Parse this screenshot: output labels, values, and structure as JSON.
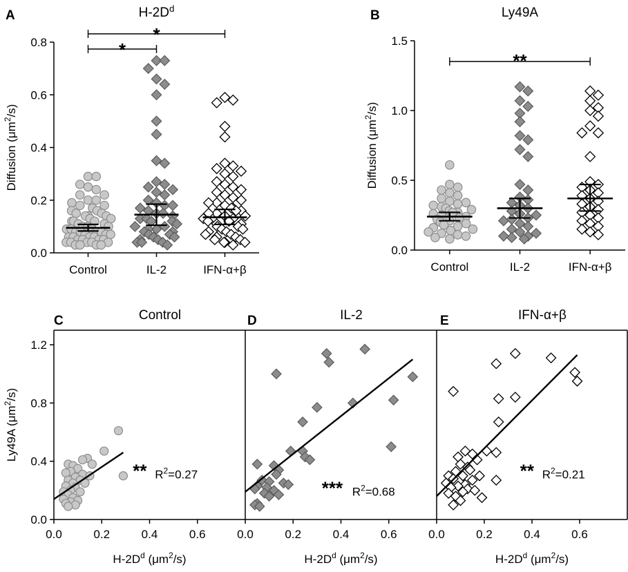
{
  "colors": {
    "control_fill": "#c8c8c8",
    "control_stroke": "#8c8c8c",
    "il2_fill": "#8c8c8c",
    "il2_stroke": "#5a5a5a",
    "ifn_fill": "#ffffff",
    "ifn_stroke": "#000000"
  },
  "chart_data": [
    {
      "panel": "A",
      "type": "scatter",
      "title": "H-2D",
      "title_sup": "d",
      "ylabel": "Diffusion (μm",
      "ylabel_sup": "2",
      "ylabel_end": "/s)",
      "ylim": [
        0,
        0.8
      ],
      "yticks": [
        "0.0",
        "0.2",
        "0.4",
        "0.6",
        "0.8"
      ],
      "categories": [
        "Control",
        "IL-2",
        "IFN-α+β"
      ],
      "series": [
        {
          "name": "Control",
          "marker": "circle",
          "mean": 0.095,
          "ci": [
            0.083,
            0.108
          ],
          "values": [
            0.29,
            0.29,
            0.26,
            0.25,
            0.24,
            0.22,
            0.22,
            0.2,
            0.2,
            0.19,
            0.18,
            0.18,
            0.17,
            0.16,
            0.16,
            0.15,
            0.15,
            0.14,
            0.14,
            0.14,
            0.13,
            0.13,
            0.12,
            0.12,
            0.12,
            0.11,
            0.11,
            0.1,
            0.1,
            0.1,
            0.1,
            0.09,
            0.09,
            0.09,
            0.08,
            0.08,
            0.08,
            0.08,
            0.07,
            0.07,
            0.07,
            0.06,
            0.06,
            0.06,
            0.06,
            0.05,
            0.05,
            0.05,
            0.05,
            0.04,
            0.04,
            0.04,
            0.04,
            0.04,
            0.03,
            0.03,
            0.03,
            0.03
          ]
        },
        {
          "name": "IL-2",
          "marker": "diamond",
          "mean": 0.145,
          "ci": [
            0.105,
            0.185
          ],
          "values": [
            0.73,
            0.73,
            0.7,
            0.66,
            0.64,
            0.6,
            0.5,
            0.45,
            0.35,
            0.34,
            0.27,
            0.26,
            0.25,
            0.24,
            0.23,
            0.22,
            0.2,
            0.19,
            0.18,
            0.18,
            0.17,
            0.16,
            0.15,
            0.15,
            0.14,
            0.13,
            0.13,
            0.12,
            0.12,
            0.11,
            0.1,
            0.1,
            0.09,
            0.09,
            0.08,
            0.08,
            0.07,
            0.07,
            0.06,
            0.06,
            0.05,
            0.05,
            0.04,
            0.04,
            0.04,
            0.03
          ]
        },
        {
          "name": "IFN-α+β",
          "marker": "diamond-open",
          "mean": 0.135,
          "ci": [
            0.108,
            0.165
          ],
          "values": [
            0.59,
            0.58,
            0.57,
            0.48,
            0.44,
            0.34,
            0.33,
            0.32,
            0.31,
            0.3,
            0.29,
            0.27,
            0.26,
            0.25,
            0.24,
            0.23,
            0.22,
            0.21,
            0.2,
            0.19,
            0.19,
            0.18,
            0.17,
            0.17,
            0.16,
            0.16,
            0.15,
            0.15,
            0.14,
            0.14,
            0.13,
            0.13,
            0.12,
            0.12,
            0.11,
            0.11,
            0.1,
            0.1,
            0.09,
            0.09,
            0.08,
            0.08,
            0.07,
            0.07,
            0.06,
            0.06,
            0.05,
            0.05,
            0.04,
            0.04,
            0.04,
            0.03
          ]
        }
      ],
      "significance": [
        {
          "from": 0,
          "to": 1,
          "label": "*"
        },
        {
          "from": 0,
          "to": 2,
          "label": "*"
        }
      ]
    },
    {
      "panel": "B",
      "type": "scatter",
      "title": "Ly49A",
      "ylabel": "Diffusion (μm",
      "ylabel_sup": "2",
      "ylabel_end": "/s)",
      "ylim": [
        0,
        1.5
      ],
      "yticks": [
        "0.0",
        "0.5",
        "1.0",
        "1.5"
      ],
      "categories": [
        "Control",
        "IL-2",
        "IFN-α+β"
      ],
      "series": [
        {
          "name": "Control",
          "marker": "circle",
          "mean": 0.24,
          "ci": [
            0.21,
            0.27
          ],
          "values": [
            0.61,
            0.47,
            0.45,
            0.43,
            0.41,
            0.39,
            0.37,
            0.35,
            0.34,
            0.33,
            0.32,
            0.31,
            0.3,
            0.29,
            0.28,
            0.27,
            0.27,
            0.26,
            0.25,
            0.24,
            0.23,
            0.22,
            0.21,
            0.2,
            0.19,
            0.18,
            0.17,
            0.16,
            0.15,
            0.14,
            0.13,
            0.12,
            0.11,
            0.1,
            0.09,
            0.08
          ]
        },
        {
          "name": "IL-2",
          "marker": "diamond",
          "mean": 0.3,
          "ci": [
            0.23,
            0.37
          ],
          "values": [
            1.17,
            1.14,
            1.07,
            1.03,
            0.98,
            0.92,
            0.82,
            0.79,
            0.72,
            0.67,
            0.47,
            0.43,
            0.38,
            0.36,
            0.34,
            0.32,
            0.3,
            0.28,
            0.26,
            0.25,
            0.23,
            0.22,
            0.21,
            0.19,
            0.17,
            0.15,
            0.13,
            0.12,
            0.1,
            0.1,
            0.09,
            0.08
          ]
        },
        {
          "name": "IFN-α+β",
          "marker": "diamond-open",
          "mean": 0.37,
          "ci": [
            0.28,
            0.47
          ],
          "values": [
            1.14,
            1.11,
            1.07,
            1.02,
            1.0,
            0.96,
            0.89,
            0.84,
            0.84,
            0.67,
            0.49,
            0.47,
            0.45,
            0.43,
            0.41,
            0.39,
            0.37,
            0.35,
            0.33,
            0.31,
            0.29,
            0.27,
            0.25,
            0.23,
            0.21,
            0.19,
            0.17,
            0.15,
            0.13,
            0.11
          ]
        }
      ],
      "significance": [
        {
          "from": 0,
          "to": 2,
          "label": "**"
        }
      ]
    }
  ],
  "correlation": {
    "ylabel": "Ly49A (μm",
    "ylabel_sup": "2",
    "ylabel_end": "/s)",
    "xlabel": "H-2D",
    "xlabel_sup": "d",
    "xlabel_end": " (μm",
    "xlabel_sup2": "2",
    "xlabel_end2": "/s)",
    "ylim": [
      0,
      1.3
    ],
    "yticks": [
      "0.0",
      "0.4",
      "0.8",
      "1.2"
    ],
    "xlim": [
      0,
      0.8
    ],
    "xticks": [
      "0.0",
      "0.2",
      "0.4",
      "0.6"
    ],
    "panels": [
      {
        "panel": "C",
        "title": "Control",
        "marker": "circle",
        "sig": "**",
        "r2_label": "R",
        "r2_sup": "2",
        "r2_value": "=0.27",
        "fit": [
          [
            0,
            0.14
          ],
          [
            0.29,
            0.46
          ]
        ],
        "points": [
          [
            0.27,
            0.61
          ],
          [
            0.21,
            0.47
          ],
          [
            0.14,
            0.42
          ],
          [
            0.12,
            0.41
          ],
          [
            0.06,
            0.38
          ],
          [
            0.08,
            0.37
          ],
          [
            0.16,
            0.38
          ],
          [
            0.1,
            0.35
          ],
          [
            0.07,
            0.33
          ],
          [
            0.05,
            0.32
          ],
          [
            0.12,
            0.31
          ],
          [
            0.29,
            0.3
          ],
          [
            0.09,
            0.29
          ],
          [
            0.15,
            0.3
          ],
          [
            0.06,
            0.27
          ],
          [
            0.11,
            0.27
          ],
          [
            0.13,
            0.25
          ],
          [
            0.08,
            0.25
          ],
          [
            0.05,
            0.23
          ],
          [
            0.09,
            0.22
          ],
          [
            0.07,
            0.2
          ],
          [
            0.04,
            0.19
          ],
          [
            0.11,
            0.19
          ],
          [
            0.06,
            0.17
          ],
          [
            0.08,
            0.15
          ],
          [
            0.04,
            0.14
          ],
          [
            0.1,
            0.13
          ],
          [
            0.07,
            0.12
          ],
          [
            0.05,
            0.11
          ],
          [
            0.09,
            0.1
          ],
          [
            0.06,
            0.09
          ]
        ]
      },
      {
        "panel": "D",
        "title": "IL-2",
        "marker": "diamond",
        "sig": "***",
        "r2_label": "R",
        "r2_sup": "2",
        "r2_value": "=0.68",
        "fit": [
          [
            0,
            0.19
          ],
          [
            0.7,
            1.1
          ]
        ],
        "points": [
          [
            0.5,
            1.17
          ],
          [
            0.34,
            1.14
          ],
          [
            0.35,
            1.08
          ],
          [
            0.13,
            1.0
          ],
          [
            0.7,
            0.98
          ],
          [
            0.62,
            0.82
          ],
          [
            0.45,
            0.8
          ],
          [
            0.3,
            0.77
          ],
          [
            0.24,
            0.67
          ],
          [
            0.61,
            0.5
          ],
          [
            0.19,
            0.47
          ],
          [
            0.24,
            0.47
          ],
          [
            0.25,
            0.43
          ],
          [
            0.27,
            0.41
          ],
          [
            0.05,
            0.38
          ],
          [
            0.12,
            0.37
          ],
          [
            0.14,
            0.34
          ],
          [
            0.13,
            0.31
          ],
          [
            0.07,
            0.27
          ],
          [
            0.1,
            0.26
          ],
          [
            0.16,
            0.25
          ],
          [
            0.18,
            0.24
          ],
          [
            0.05,
            0.23
          ],
          [
            0.09,
            0.22
          ],
          [
            0.04,
            0.21
          ],
          [
            0.12,
            0.2
          ],
          [
            0.08,
            0.18
          ],
          [
            0.14,
            0.17
          ],
          [
            0.1,
            0.16
          ],
          [
            0.05,
            0.11
          ],
          [
            0.04,
            0.1
          ],
          [
            0.06,
            0.09
          ]
        ]
      },
      {
        "panel": "E",
        "title": "IFN-α+β",
        "marker": "diamond-open",
        "sig": "**",
        "r2_label": "R",
        "r2_sup": "2",
        "r2_value": "=0.21",
        "fit": [
          [
            0,
            0.16
          ],
          [
            0.59,
            1.13
          ]
        ],
        "points": [
          [
            0.33,
            1.14
          ],
          [
            0.48,
            1.11
          ],
          [
            0.25,
            1.07
          ],
          [
            0.58,
            1.01
          ],
          [
            0.59,
            0.95
          ],
          [
            0.07,
            0.88
          ],
          [
            0.26,
            0.83
          ],
          [
            0.33,
            0.84
          ],
          [
            0.26,
            0.67
          ],
          [
            0.12,
            0.47
          ],
          [
            0.21,
            0.47
          ],
          [
            0.25,
            0.46
          ],
          [
            0.15,
            0.45
          ],
          [
            0.09,
            0.43
          ],
          [
            0.17,
            0.41
          ],
          [
            0.1,
            0.38
          ],
          [
            0.13,
            0.36
          ],
          [
            0.14,
            0.34
          ],
          [
            0.08,
            0.33
          ],
          [
            0.05,
            0.3
          ],
          [
            0.11,
            0.3
          ],
          [
            0.18,
            0.3
          ],
          [
            0.07,
            0.28
          ],
          [
            0.15,
            0.27
          ],
          [
            0.25,
            0.27
          ],
          [
            0.04,
            0.25
          ],
          [
            0.12,
            0.24
          ],
          [
            0.09,
            0.23
          ],
          [
            0.06,
            0.22
          ],
          [
            0.13,
            0.21
          ],
          [
            0.16,
            0.2
          ],
          [
            0.11,
            0.19
          ],
          [
            0.05,
            0.18
          ],
          [
            0.08,
            0.16
          ],
          [
            0.19,
            0.15
          ],
          [
            0.1,
            0.13
          ],
          [
            0.07,
            0.1
          ]
        ]
      }
    ]
  }
}
